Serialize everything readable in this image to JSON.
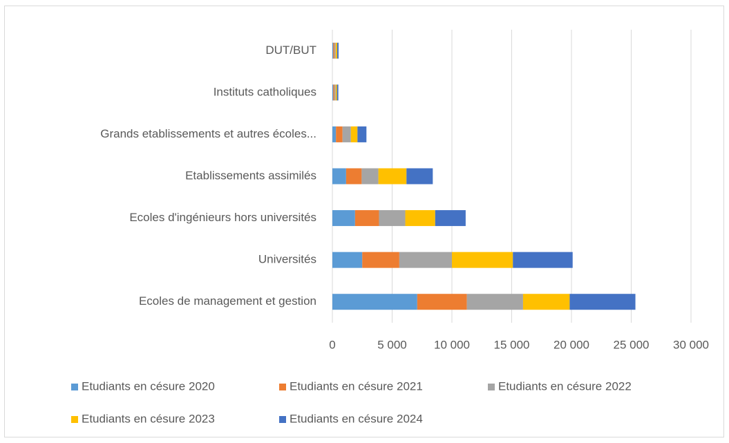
{
  "chart_data": {
    "type": "bar",
    "orientation": "horizontal",
    "stacked": true,
    "categories": [
      "DUT/BUT",
      "Instituts catholiques",
      "Grands  etablissements et autres écoles...",
      "Etablissements assimilés",
      "Ecoles d'ingénieurs hors universités",
      "Universités",
      "Ecoles de management et gestion"
    ],
    "series": [
      {
        "name": "Etudiants en césure 2020",
        "color": "#5b9bd5",
        "values": [
          80,
          80,
          300,
          1150,
          1900,
          2500,
          7100
        ]
      },
      {
        "name": "Etudiants en césure 2021",
        "color": "#ed7d31",
        "values": [
          100,
          100,
          550,
          1300,
          2000,
          3100,
          4150
        ]
      },
      {
        "name": "Etudiants en césure 2022",
        "color": "#a5a5a5",
        "values": [
          100,
          100,
          700,
          1400,
          2200,
          4400,
          4700
        ]
      },
      {
        "name": "Etudiants en césure 2023",
        "color": "#ffc000",
        "values": [
          120,
          100,
          550,
          2350,
          2500,
          5100,
          3900
        ]
      },
      {
        "name": "Etudiants en césure 2024",
        "color": "#4472c4",
        "values": [
          120,
          120,
          750,
          2200,
          2550,
          5000,
          5500
        ]
      }
    ],
    "xlim": [
      0,
      30000
    ],
    "xticks": [
      0,
      {
        "value": 5000,
        "label": "5 000"
      },
      {
        "value": 10000,
        "label": "10 000"
      },
      {
        "value": 15000,
        "label": "15 000"
      },
      {
        "value": 20000,
        "label": "20 000"
      },
      {
        "value": 25000,
        "label": "25 000"
      },
      {
        "value": 30000,
        "label": "30 000"
      }
    ],
    "grid": true,
    "legend": "bottom"
  }
}
